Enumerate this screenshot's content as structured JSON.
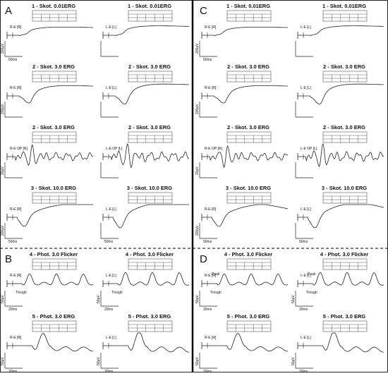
{
  "panels": [
    {
      "letter": "A",
      "plots": [
        {
          "title": "1 - Skot. 0.01ERG",
          "channel": "R-E [R]",
          "x_scale": "50ms",
          "y_scale": "200µV"
        },
        {
          "title": "1 - Skot. 0.01ERG",
          "channel": "L-E [L]"
        },
        {
          "title": "2 - Skot. 3.0 ERG",
          "channel": "R-E [R]",
          "y_scale": "200µV"
        },
        {
          "title": "2 - Skot. 3.0 ERG",
          "channel": "L-E [L]"
        },
        {
          "title": "2 - Skot. 3.0 ERG",
          "channel": "R-E OP [R]",
          "y_scale": "20µV"
        },
        {
          "title": "2 - Skot. 3.0 ERG",
          "channel": "L-E OP [L]"
        },
        {
          "title": "3 - Skot. 10.0 ERG",
          "channel": "R-E [R]",
          "x_scale": "50ms",
          "y_scale": "200µV"
        },
        {
          "title": "3 - Skot. 10.0 ERG",
          "channel": "L-E [L]",
          "x_scale": "50ms"
        }
      ]
    },
    {
      "letter": "B",
      "plots": [
        {
          "title": "4 - Phot. 3.0 Flicker",
          "channel": "R-E [R]",
          "x_scale": "20ms",
          "y_scale": "50µV",
          "note": "Trough"
        },
        {
          "title": "4 - Phot. 3.0 Flicker",
          "channel": "L-E [L]",
          "x_scale": "20ms",
          "y_scale": "50µV",
          "note": "Trough"
        },
        {
          "title": "5 - Phot. 3.0 ERG",
          "channel": "R-E [R]",
          "x_scale": "20ms",
          "y_scale": "50µV"
        },
        {
          "title": "5 - Phot. 3.0 ERG",
          "channel": "L-E [L]",
          "x_scale": "20ms",
          "y_scale": "50µV"
        }
      ]
    },
    {
      "letter": "C",
      "plots": [
        {
          "title": "1 - Skot. 0.01ERG",
          "channel": "R-E [R]",
          "x_scale": "50ms",
          "y_scale": "200µV"
        },
        {
          "title": "1 - Skot. 0.01ERG",
          "channel": "L-E [L]"
        },
        {
          "title": "2 - Skot. 3.0 ERG",
          "channel": "R-E [R]",
          "y_scale": "200µV"
        },
        {
          "title": "2 - Skot. 3.0 ERG",
          "channel": "L-E [L]"
        },
        {
          "title": "2 - Skot. 3.0 ERG",
          "channel": "R-E OP [R]",
          "y_scale": "20µV"
        },
        {
          "title": "2 - Skot. 3.0 ERG",
          "channel": "L-E OP [L]"
        },
        {
          "title": "3 - Skot. 10.0 ERG",
          "channel": "R-E [R]",
          "x_scale": "50ms",
          "y_scale": "200µV"
        },
        {
          "title": "3 - Skot. 10.0 ERG",
          "channel": "L-E [L]",
          "x_scale": "50ms"
        }
      ]
    },
    {
      "letter": "D",
      "plots": [
        {
          "title": "4 - Phot. 3.0 Flicker",
          "channel": "R-E [R]",
          "x_scale": "20ms",
          "y_scale": "50µV",
          "note": "Trough",
          "note2": "Peak"
        },
        {
          "title": "4 - Phot. 3.0 Flicker",
          "channel": "L-E [L]",
          "x_scale": "20ms",
          "y_scale": "50µV",
          "note": "Trough",
          "note2": "Peak"
        },
        {
          "title": "5 - Phot. 3.0 ERG",
          "channel": "R-E [R]",
          "x_scale": "20ms",
          "y_scale": "50µV"
        },
        {
          "title": "5 - Phot. 3.0 ERG",
          "channel": "L-E [L]",
          "x_scale": "20ms",
          "y_scale": "50µV"
        }
      ]
    }
  ]
}
